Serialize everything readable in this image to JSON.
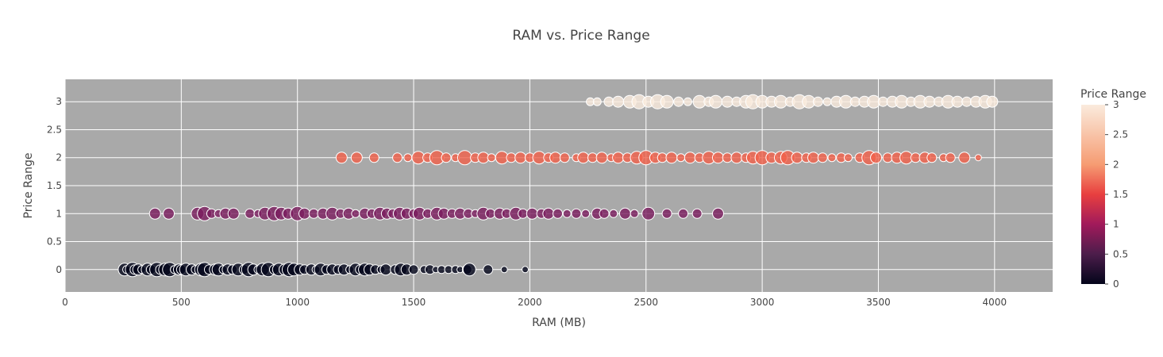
{
  "chart_data": {
    "type": "scatter",
    "title": "RAM vs. Price Range",
    "xlabel": "RAM (MB)",
    "ylabel": "Price Range",
    "xlim": [
      0,
      4250
    ],
    "ylim": [
      -0.4,
      3.4
    ],
    "x_ticks": [
      0,
      500,
      1000,
      1500,
      2000,
      2500,
      3000,
      3500,
      4000
    ],
    "y_ticks": [
      0,
      0.5,
      1,
      1.5,
      2,
      2.5,
      3
    ],
    "x_tick_labels": [
      "0",
      "500",
      "1000",
      "1500",
      "2000",
      "2500",
      "3000",
      "3500",
      "4000"
    ],
    "y_tick_labels": [
      "0",
      "0.5",
      "1",
      "1.5",
      "2",
      "2.5",
      "3"
    ],
    "grid": true,
    "plot_background": "#a9a9a9",
    "marker_outline": "#ffffff",
    "colorscale": [
      "#0b0405",
      "#382a54",
      "#395d9c",
      "#3497a9",
      "#60cfac",
      "#def5e5"
    ],
    "colorscale_stops": [
      {
        "value": 0,
        "color": "#03051a"
      },
      {
        "value": 0.5,
        "color": "#4c1d4b"
      },
      {
        "value": 1,
        "color": "#a11a5b"
      },
      {
        "value": 1.5,
        "color": "#e83f3f"
      },
      {
        "value": 2,
        "color": "#f69c73"
      },
      {
        "value": 3,
        "color": "#faebdd"
      }
    ],
    "colorbar": {
      "title": "Price Range",
      "range": [
        0,
        3
      ],
      "tick_values": [
        0,
        0.5,
        1,
        1.5,
        2,
        2.5,
        3
      ],
      "tick_labels": [
        "0",
        "0.5",
        "1",
        "1.5",
        "2",
        "2.5",
        "3"
      ],
      "placement": "right"
    },
    "series": [
      {
        "price_range": 0,
        "color": "#03051a",
        "points": [
          [
            256,
            0,
            8
          ],
          [
            265,
            0,
            5
          ],
          [
            290,
            0,
            9
          ],
          [
            300,
            0,
            6
          ],
          [
            315,
            0,
            7
          ],
          [
            330,
            0,
            5
          ],
          [
            355,
            0,
            8
          ],
          [
            370,
            0,
            6
          ],
          [
            395,
            0,
            9
          ],
          [
            410,
            0,
            6
          ],
          [
            430,
            0,
            8
          ],
          [
            450,
            0,
            9
          ],
          [
            470,
            0,
            5
          ],
          [
            490,
            0,
            7
          ],
          [
            500,
            0,
            6
          ],
          [
            520,
            0,
            8
          ],
          [
            545,
            0,
            7
          ],
          [
            560,
            0,
            5
          ],
          [
            585,
            0,
            8
          ],
          [
            600,
            0,
            9
          ],
          [
            620,
            0,
            6
          ],
          [
            645,
            0,
            7
          ],
          [
            660,
            0,
            8
          ],
          [
            680,
            0,
            5
          ],
          [
            700,
            0,
            7
          ],
          [
            720,
            0,
            6
          ],
          [
            745,
            0,
            8
          ],
          [
            770,
            0,
            6
          ],
          [
            790,
            0,
            9
          ],
          [
            810,
            0,
            7
          ],
          [
            830,
            0,
            5
          ],
          [
            850,
            0,
            8
          ],
          [
            875,
            0,
            9
          ],
          [
            900,
            0,
            6
          ],
          [
            920,
            0,
            8
          ],
          [
            945,
            0,
            7
          ],
          [
            965,
            0,
            9
          ],
          [
            985,
            0,
            8
          ],
          [
            1010,
            0,
            7
          ],
          [
            1030,
            0,
            6
          ],
          [
            1060,
            0,
            7
          ],
          [
            1080,
            0,
            5
          ],
          [
            1100,
            0,
            8
          ],
          [
            1125,
            0,
            6
          ],
          [
            1150,
            0,
            7
          ],
          [
            1175,
            0,
            6
          ],
          [
            1200,
            0,
            7
          ],
          [
            1225,
            0,
            5
          ],
          [
            1250,
            0,
            8
          ],
          [
            1270,
            0,
            6
          ],
          [
            1290,
            0,
            8
          ],
          [
            1310,
            0,
            7
          ],
          [
            1335,
            0,
            6
          ],
          [
            1360,
            0,
            5
          ],
          [
            1380,
            0,
            7
          ],
          [
            1420,
            0,
            6
          ],
          [
            1445,
            0,
            8
          ],
          [
            1470,
            0,
            7
          ],
          [
            1500,
            0,
            6
          ],
          [
            1545,
            0,
            5
          ],
          [
            1570,
            0,
            6
          ],
          [
            1595,
            0,
            4
          ],
          [
            1620,
            0,
            5
          ],
          [
            1650,
            0,
            5
          ],
          [
            1680,
            0,
            5
          ],
          [
            1700,
            0,
            4
          ],
          [
            1730,
            0,
            6
          ],
          [
            1740,
            0,
            8
          ],
          [
            1820,
            0,
            6
          ],
          [
            1890,
            0,
            4
          ],
          [
            1980,
            0,
            4
          ]
        ]
      },
      {
        "price_range": 1,
        "color": "#7b1c5e",
        "points": [
          [
            387,
            1,
            7
          ],
          [
            446,
            1,
            7
          ],
          [
            570,
            1,
            8
          ],
          [
            600,
            1,
            9
          ],
          [
            630,
            1,
            6
          ],
          [
            660,
            1,
            5
          ],
          [
            690,
            1,
            7
          ],
          [
            725,
            1,
            7
          ],
          [
            795,
            1,
            6
          ],
          [
            830,
            1,
            5
          ],
          [
            860,
            1,
            8
          ],
          [
            900,
            1,
            9
          ],
          [
            930,
            1,
            8
          ],
          [
            960,
            1,
            7
          ],
          [
            1000,
            1,
            9
          ],
          [
            1030,
            1,
            7
          ],
          [
            1070,
            1,
            6
          ],
          [
            1110,
            1,
            7
          ],
          [
            1150,
            1,
            8
          ],
          [
            1185,
            1,
            6
          ],
          [
            1220,
            1,
            7
          ],
          [
            1250,
            1,
            5
          ],
          [
            1290,
            1,
            7
          ],
          [
            1320,
            1,
            6
          ],
          [
            1355,
            1,
            8
          ],
          [
            1385,
            1,
            7
          ],
          [
            1410,
            1,
            6
          ],
          [
            1440,
            1,
            8
          ],
          [
            1470,
            1,
            7
          ],
          [
            1500,
            1,
            6
          ],
          [
            1525,
            1,
            8
          ],
          [
            1560,
            1,
            6
          ],
          [
            1600,
            1,
            8
          ],
          [
            1630,
            1,
            7
          ],
          [
            1665,
            1,
            6
          ],
          [
            1700,
            1,
            7
          ],
          [
            1735,
            1,
            6
          ],
          [
            1765,
            1,
            5
          ],
          [
            1800,
            1,
            8
          ],
          [
            1830,
            1,
            6
          ],
          [
            1870,
            1,
            7
          ],
          [
            1900,
            1,
            6
          ],
          [
            1940,
            1,
            8
          ],
          [
            1970,
            1,
            6
          ],
          [
            2010,
            1,
            7
          ],
          [
            2050,
            1,
            6
          ],
          [
            2080,
            1,
            7
          ],
          [
            2120,
            1,
            6
          ],
          [
            2160,
            1,
            5
          ],
          [
            2200,
            1,
            6
          ],
          [
            2240,
            1,
            5
          ],
          [
            2290,
            1,
            7
          ],
          [
            2320,
            1,
            6
          ],
          [
            2360,
            1,
            5
          ],
          [
            2410,
            1,
            7
          ],
          [
            2450,
            1,
            5
          ],
          [
            2510,
            1,
            8
          ],
          [
            2590,
            1,
            6
          ],
          [
            2660,
            1,
            6
          ],
          [
            2720,
            1,
            6
          ],
          [
            2810,
            1,
            7
          ]
        ]
      },
      {
        "price_range": 2,
        "color": "#f1604a",
        "points": [
          [
            1190,
            2,
            7
          ],
          [
            1255,
            2,
            7
          ],
          [
            1330,
            2,
            6
          ],
          [
            1430,
            2,
            6
          ],
          [
            1475,
            2,
            5
          ],
          [
            1520,
            2,
            8
          ],
          [
            1560,
            2,
            6
          ],
          [
            1600,
            2,
            9
          ],
          [
            1640,
            2,
            6
          ],
          [
            1680,
            2,
            5
          ],
          [
            1720,
            2,
            9
          ],
          [
            1765,
            2,
            6
          ],
          [
            1800,
            2,
            7
          ],
          [
            1835,
            2,
            5
          ],
          [
            1880,
            2,
            8
          ],
          [
            1920,
            2,
            6
          ],
          [
            1960,
            2,
            7
          ],
          [
            2000,
            2,
            6
          ],
          [
            2040,
            2,
            8
          ],
          [
            2080,
            2,
            6
          ],
          [
            2110,
            2,
            7
          ],
          [
            2150,
            2,
            6
          ],
          [
            2200,
            2,
            5
          ],
          [
            2230,
            2,
            7
          ],
          [
            2270,
            2,
            6
          ],
          [
            2310,
            2,
            7
          ],
          [
            2350,
            2,
            5
          ],
          [
            2380,
            2,
            7
          ],
          [
            2420,
            2,
            6
          ],
          [
            2460,
            2,
            8
          ],
          [
            2500,
            2,
            9
          ],
          [
            2540,
            2,
            7
          ],
          [
            2570,
            2,
            6
          ],
          [
            2610,
            2,
            7
          ],
          [
            2650,
            2,
            5
          ],
          [
            2690,
            2,
            7
          ],
          [
            2730,
            2,
            6
          ],
          [
            2770,
            2,
            8
          ],
          [
            2810,
            2,
            7
          ],
          [
            2850,
            2,
            6
          ],
          [
            2890,
            2,
            7
          ],
          [
            2930,
            2,
            6
          ],
          [
            2960,
            2,
            8
          ],
          [
            3000,
            2,
            9
          ],
          [
            3040,
            2,
            7
          ],
          [
            3080,
            2,
            8
          ],
          [
            3110,
            2,
            9
          ],
          [
            3150,
            2,
            7
          ],
          [
            3190,
            2,
            6
          ],
          [
            3220,
            2,
            7
          ],
          [
            3260,
            2,
            6
          ],
          [
            3300,
            2,
            5
          ],
          [
            3340,
            2,
            6
          ],
          [
            3370,
            2,
            5
          ],
          [
            3420,
            2,
            6
          ],
          [
            3460,
            2,
            9
          ],
          [
            3490,
            2,
            7
          ],
          [
            3540,
            2,
            6
          ],
          [
            3580,
            2,
            7
          ],
          [
            3620,
            2,
            8
          ],
          [
            3660,
            2,
            6
          ],
          [
            3700,
            2,
            7
          ],
          [
            3730,
            2,
            6
          ],
          [
            3780,
            2,
            5
          ],
          [
            3810,
            2,
            6
          ],
          [
            3870,
            2,
            7
          ],
          [
            3930,
            2,
            4
          ]
        ]
      },
      {
        "price_range": 3,
        "color": "#faebdd",
        "points": [
          [
            2260,
            3,
            5
          ],
          [
            2290,
            3,
            5
          ],
          [
            2340,
            3,
            6
          ],
          [
            2380,
            3,
            7
          ],
          [
            2430,
            3,
            8
          ],
          [
            2470,
            3,
            9
          ],
          [
            2510,
            3,
            7
          ],
          [
            2550,
            3,
            9
          ],
          [
            2590,
            3,
            8
          ],
          [
            2640,
            3,
            6
          ],
          [
            2680,
            3,
            5
          ],
          [
            2730,
            3,
            8
          ],
          [
            2770,
            3,
            6
          ],
          [
            2800,
            3,
            8
          ],
          [
            2850,
            3,
            7
          ],
          [
            2890,
            3,
            6
          ],
          [
            2930,
            3,
            8
          ],
          [
            2960,
            3,
            9
          ],
          [
            3000,
            3,
            8
          ],
          [
            3040,
            3,
            7
          ],
          [
            3080,
            3,
            8
          ],
          [
            3120,
            3,
            6
          ],
          [
            3160,
            3,
            9
          ],
          [
            3200,
            3,
            8
          ],
          [
            3240,
            3,
            6
          ],
          [
            3280,
            3,
            5
          ],
          [
            3320,
            3,
            7
          ],
          [
            3360,
            3,
            8
          ],
          [
            3400,
            3,
            6
          ],
          [
            3440,
            3,
            7
          ],
          [
            3480,
            3,
            8
          ],
          [
            3520,
            3,
            6
          ],
          [
            3560,
            3,
            7
          ],
          [
            3600,
            3,
            8
          ],
          [
            3640,
            3,
            6
          ],
          [
            3680,
            3,
            8
          ],
          [
            3720,
            3,
            7
          ],
          [
            3760,
            3,
            6
          ],
          [
            3800,
            3,
            8
          ],
          [
            3840,
            3,
            7
          ],
          [
            3880,
            3,
            6
          ],
          [
            3920,
            3,
            7
          ],
          [
            3960,
            3,
            8
          ],
          [
            3990,
            3,
            7
          ]
        ]
      }
    ]
  }
}
